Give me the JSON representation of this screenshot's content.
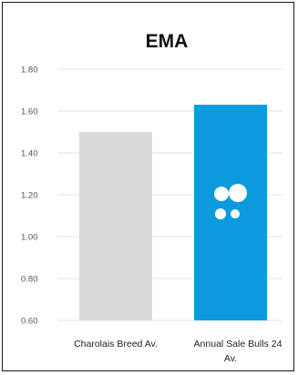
{
  "chart_data": {
    "type": "bar",
    "title": "EMA",
    "categories": [
      [
        "Charolais Breed Av."
      ],
      [
        "Annual Sale Bulls 24",
        "Av."
      ]
    ],
    "values": [
      1.5,
      1.63
    ],
    "bar_colors": [
      "#d9d9d9",
      "#0b9bdc"
    ],
    "ylim": [
      0.6,
      1.8
    ],
    "yticks": [
      "0.60",
      "0.80",
      "1.00",
      "1.20",
      "1.40",
      "1.60",
      "1.80"
    ],
    "xlabel": "",
    "ylabel": "",
    "grid": true,
    "bar_badge_icon": "four-dots-logo-icon"
  }
}
